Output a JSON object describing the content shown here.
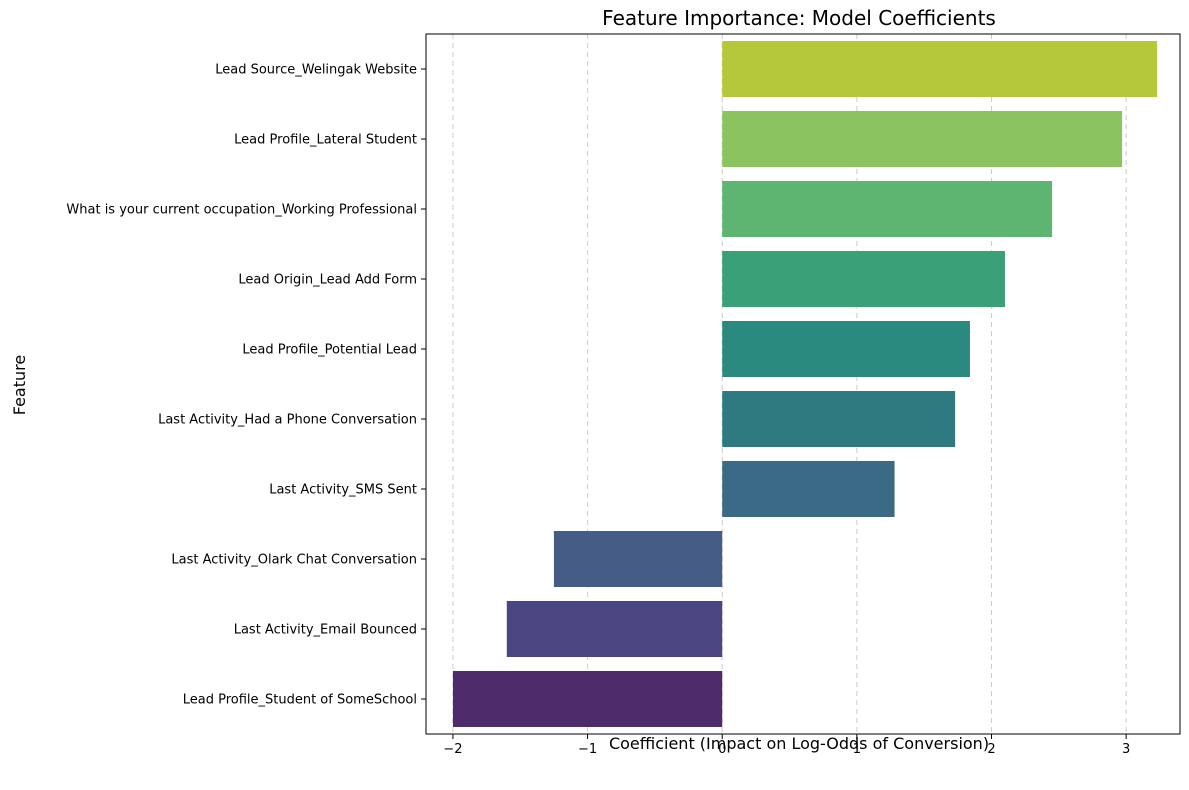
{
  "chart_data": {
    "type": "bar",
    "orientation": "horizontal",
    "title": "Feature Importance: Model Coefficients",
    "xlabel": "Coefficient (Impact on Log-Odds of Conversion)",
    "ylabel": "Feature",
    "xlim": [
      -2.2,
      3.4
    ],
    "xticks": [
      -2,
      -1,
      0,
      1,
      2,
      3
    ],
    "xtick_labels": [
      "−2",
      "−1",
      "0",
      "1",
      "2",
      "3"
    ],
    "grid": "x, dashed",
    "categories": [
      "Lead Source_Welingak Website",
      "Lead Profile_Lateral Student",
      "What is your current occupation_Working Professional",
      "Lead Origin_Lead Add Form",
      "Lead Profile_Potential Lead",
      "Last Activity_Had a Phone Conversation",
      "Last Activity_SMS Sent",
      "Last Activity_Olark Chat Conversation",
      "Last Activity_Email Bounced",
      "Lead Profile_Student of SomeSchool"
    ],
    "values": [
      3.23,
      2.97,
      2.45,
      2.1,
      1.84,
      1.73,
      1.28,
      -1.25,
      -1.6,
      -2.0
    ],
    "colors": [
      "#b4c83a",
      "#8bc45e",
      "#5db571",
      "#3aa077",
      "#2b8a80",
      "#2e7a80",
      "#3a6a85",
      "#445c86",
      "#4b4682",
      "#4e2b6a"
    ]
  }
}
